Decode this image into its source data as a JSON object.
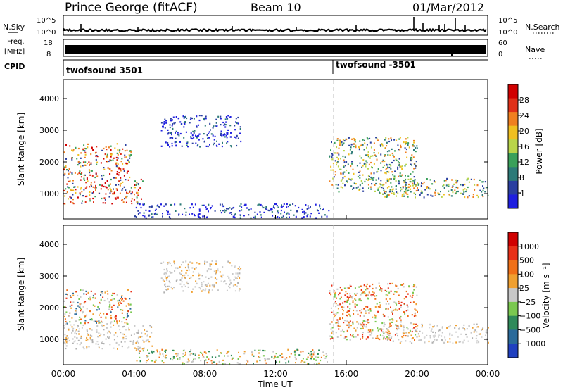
{
  "header": {
    "station": "Prince George (fitACF)",
    "beam": "Beam 10",
    "date": "01/Mar/2012"
  },
  "strips": {
    "nsky_label": "N.Sky",
    "nsky_ticks": [
      "10^5",
      "10^0"
    ],
    "nsearch_label": "N.Search",
    "nsearch_ticks": [
      "10^5",
      "10^0"
    ],
    "freq_label": "Freq.",
    "freq_unit": "[MHz]",
    "freq_ticks": [
      "18",
      "8"
    ],
    "nave_label": "Nave",
    "nave_ticks": [
      "60",
      "0"
    ],
    "cpid_label": "CPID",
    "cpid_entries": [
      {
        "text": "twofsound 3501",
        "start_hour": 0
      },
      {
        "text": "twofsound -3501",
        "start_hour": 15.2
      }
    ]
  },
  "chart_data": [
    {
      "type": "heatmap",
      "parameter": "Power",
      "ylabel": "Slant Range [km]",
      "yticks": [
        1000,
        2000,
        3000,
        4000
      ],
      "ylim": [
        200,
        4600
      ],
      "xlim": [
        0,
        24
      ],
      "colorbar": {
        "label": "Power [dB]",
        "ticks": [
          "4",
          "8",
          "12",
          "16",
          "20",
          "24",
          "28"
        ],
        "colors": [
          "#1f1fe0",
          "#2a3fa0",
          "#2c7a78",
          "#3aa05a",
          "#b9d54a",
          "#f0c020",
          "#f08020",
          "#e03018",
          "#d10000"
        ]
      },
      "features": [
        {
          "t0": 0.0,
          "t1": 3.8,
          "r0": 1500,
          "r1": 2600,
          "level": "high"
        },
        {
          "t0": 0.0,
          "t1": 4.5,
          "r0": 700,
          "r1": 1500,
          "level": "high"
        },
        {
          "t0": 5.5,
          "t1": 10.0,
          "r0": 2500,
          "r1": 3500,
          "level": "low"
        },
        {
          "t0": 4.0,
          "t1": 15.0,
          "r0": 250,
          "r1": 700,
          "level": "low"
        },
        {
          "t0": 15.0,
          "t1": 20.0,
          "r0": 1000,
          "r1": 2800,
          "level": "mid"
        },
        {
          "t0": 18.0,
          "t1": 24.0,
          "r0": 900,
          "r1": 1500,
          "level": "mid"
        }
      ]
    },
    {
      "type": "heatmap",
      "parameter": "Velocity",
      "xlabel": "Time UT",
      "ylabel": "Slant Range [km]",
      "xticks": [
        "00:00",
        "04:00",
        "08:00",
        "12:00",
        "16:00",
        "20:00",
        "00:00"
      ],
      "yticks": [
        1000,
        2000,
        3000,
        4000
      ],
      "ylim": [
        200,
        4600
      ],
      "xlim": [
        0,
        24
      ],
      "colorbar": {
        "label": "Velocity [m s⁻¹]",
        "ticks": [
          "1000",
          "500",
          "100",
          "25",
          "−25",
          "−100",
          "−500",
          "−1000"
        ],
        "colors": [
          "#2040c0",
          "#2a6a9a",
          "#2f8a5a",
          "#7ac850",
          "#c8c8c8",
          "#f0a030",
          "#f07018",
          "#e83018",
          "#d00000"
        ]
      },
      "features": [
        {
          "t0": 0.0,
          "t1": 3.8,
          "r0": 1500,
          "r1": 2600,
          "level": "mixed"
        },
        {
          "t0": 0.0,
          "t1": 5.0,
          "r0": 700,
          "r1": 1500,
          "level": "grey"
        },
        {
          "t0": 5.5,
          "t1": 10.0,
          "r0": 2500,
          "r1": 3500,
          "level": "grey"
        },
        {
          "t0": 4.0,
          "t1": 15.0,
          "r0": 250,
          "r1": 700,
          "level": "orange-green"
        },
        {
          "t0": 15.0,
          "t1": 20.0,
          "r0": 1000,
          "r1": 2800,
          "level": "orange"
        },
        {
          "t0": 18.0,
          "t1": 24.0,
          "r0": 900,
          "r1": 1500,
          "level": "grey"
        }
      ]
    }
  ]
}
